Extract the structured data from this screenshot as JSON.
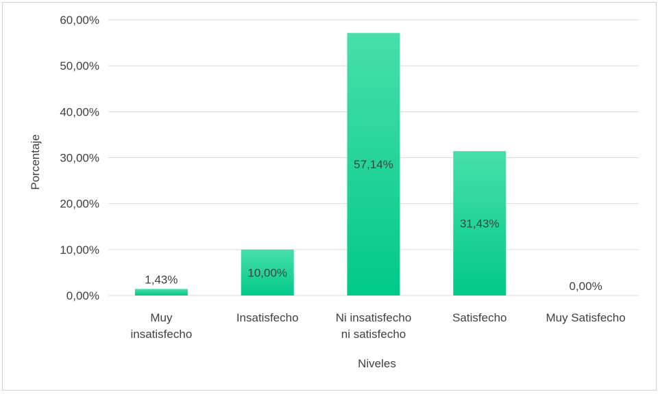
{
  "chart_data": {
    "type": "bar",
    "categories": [
      [
        "Muy",
        "insatisfecho"
      ],
      [
        "Insatisfecho"
      ],
      [
        "Ni insatisfecho",
        "ni satisfecho"
      ],
      [
        "Satisfecho"
      ],
      [
        "Muy Satisfecho"
      ]
    ],
    "values": [
      1.43,
      10.0,
      57.14,
      31.43,
      0.0
    ],
    "data_labels": [
      "1,43%",
      "10,00%",
      "57,14%",
      "31,43%",
      "0,00%"
    ],
    "ylim": [
      0,
      60
    ],
    "yticks": [
      {
        "value": 0,
        "label": "0,00%"
      },
      {
        "value": 10,
        "label": "10,00%"
      },
      {
        "value": 20,
        "label": "20,00%"
      },
      {
        "value": 30,
        "label": "30,00%"
      },
      {
        "value": 40,
        "label": "40,00%"
      },
      {
        "value": 50,
        "label": "50,00%"
      },
      {
        "value": 60,
        "label": "60,00%"
      }
    ],
    "xlabel": "Niveles",
    "ylabel": "Porcentaje",
    "grid": true,
    "bar_color_top": "#48dfa9",
    "bar_color_bottom": "#00c98a",
    "grid_color": "#d9d9d9"
  }
}
